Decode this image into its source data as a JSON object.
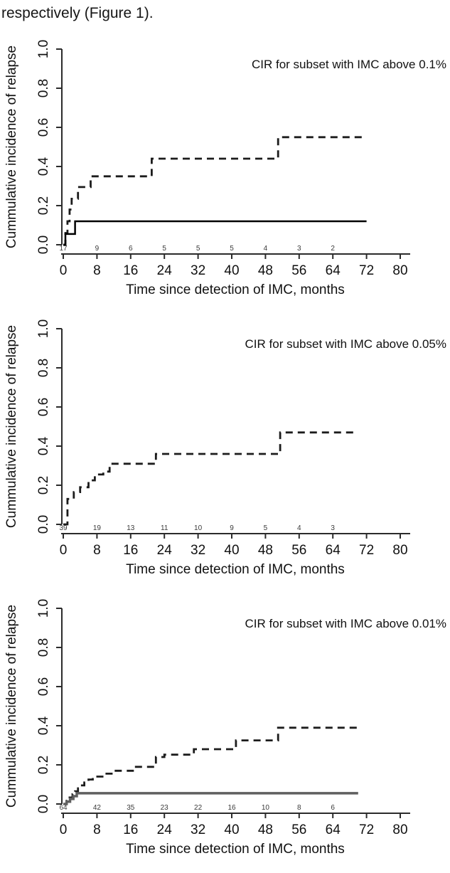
{
  "intro_text": "respectively (Figure 1).",
  "chart_data": [
    {
      "type": "step-line",
      "title": "CIR for subset with IMC above 0.1%",
      "xlabel": "Time since detection of IMC, months",
      "ylabel": "Cummulative incidence of relapse",
      "xlim": [
        0,
        80
      ],
      "ylim": [
        0,
        1
      ],
      "x_ticks": [
        0,
        8,
        16,
        24,
        32,
        40,
        48,
        56,
        64,
        72,
        80
      ],
      "y_ticks": [
        "0.0",
        "0.2",
        "0.4",
        "0.6",
        "0.8",
        "1.0"
      ],
      "grid": false,
      "legend": "none",
      "at_risk": {
        "positions": [
          0,
          8,
          16,
          24,
          32,
          40,
          48,
          56,
          64
        ],
        "counts": [
          17,
          9,
          6,
          5,
          5,
          5,
          4,
          3,
          2
        ]
      },
      "series": [
        {
          "name": "cir-dashed",
          "style": "dashed",
          "color": "#1c1c1c",
          "width": 2.8,
          "end_x": 72,
          "points": [
            [
              0,
              0
            ],
            [
              0.5,
              0.06
            ],
            [
              1,
              0.12
            ],
            [
              1.5,
              0.18
            ],
            [
              2,
              0.235
            ],
            [
              3.5,
              0.295
            ],
            [
              6.5,
              0.35
            ],
            [
              21,
              0.44
            ],
            [
              51,
              0.55
            ]
          ]
        },
        {
          "name": "cir-solid",
          "style": "solid",
          "color": "#000000",
          "width": 2.5,
          "end_x": 72,
          "points": [
            [
              0,
              0
            ],
            [
              0.5,
              0.055
            ],
            [
              2.8,
              0.12
            ]
          ]
        }
      ]
    },
    {
      "type": "step-line",
      "title": "CIR for subset with IMC above 0.05%",
      "xlabel": "Time since detection of IMC, months",
      "ylabel": "Cummulative incidence of relapse",
      "xlim": [
        0,
        80
      ],
      "ylim": [
        0,
        1
      ],
      "x_ticks": [
        0,
        8,
        16,
        24,
        32,
        40,
        48,
        56,
        64,
        72,
        80
      ],
      "y_ticks": [
        "0.0",
        "0.2",
        "0.4",
        "0.6",
        "0.8",
        "1.0"
      ],
      "grid": false,
      "legend": "none",
      "at_risk": {
        "positions": [
          0,
          8,
          16,
          24,
          32,
          40,
          48,
          56,
          64
        ],
        "counts": [
          39,
          19,
          13,
          11,
          10,
          9,
          5,
          4,
          3
        ]
      },
      "series": [
        {
          "name": "cir-dashed",
          "style": "dashed",
          "color": "#1c1c1c",
          "width": 2.8,
          "end_x": 70,
          "points": [
            [
              0,
              0
            ],
            [
              1,
              0.13
            ],
            [
              2.5,
              0.165
            ],
            [
              4,
              0.19
            ],
            [
              6,
              0.225
            ],
            [
              7.5,
              0.255
            ],
            [
              9.5,
              0.27
            ],
            [
              11,
              0.31
            ],
            [
              22,
              0.36
            ],
            [
              51.5,
              0.47
            ]
          ]
        }
      ]
    },
    {
      "type": "step-line",
      "title": "CIR for subset with IMC above 0.01%",
      "xlabel": "Time since detection of IMC, months",
      "ylabel": "Cummulative incidence of relapse",
      "xlim": [
        0,
        80
      ],
      "ylim": [
        0,
        1
      ],
      "x_ticks": [
        0,
        8,
        16,
        24,
        32,
        40,
        48,
        56,
        64,
        72,
        80
      ],
      "y_ticks": [
        "0.0",
        "0.2",
        "0.4",
        "0.6",
        "0.8",
        "1.0"
      ],
      "grid": false,
      "legend": "none",
      "at_risk": {
        "positions": [
          0,
          8,
          16,
          24,
          32,
          40,
          48,
          56,
          64
        ],
        "counts": [
          64,
          42,
          35,
          23,
          22,
          16,
          10,
          8,
          6
        ]
      },
      "series": [
        {
          "name": "cir-dashed",
          "style": "dashed",
          "color": "#1c1c1c",
          "width": 2.8,
          "end_x": 70,
          "points": [
            [
              0,
              0
            ],
            [
              0.8,
              0.016
            ],
            [
              1.5,
              0.033
            ],
            [
              2.2,
              0.05
            ],
            [
              2.8,
              0.065
            ],
            [
              3.5,
              0.08
            ],
            [
              4.2,
              0.095
            ],
            [
              5,
              0.11
            ],
            [
              6,
              0.125
            ],
            [
              7,
              0.14
            ],
            [
              10,
              0.155
            ],
            [
              12,
              0.17
            ],
            [
              17,
              0.19
            ],
            [
              22,
              0.24
            ],
            [
              24,
              0.252
            ],
            [
              31,
              0.28
            ],
            [
              41,
              0.325
            ],
            [
              51,
              0.39
            ]
          ]
        },
        {
          "name": "cir-solid",
          "style": "solid",
          "color": "#5f5f5f",
          "width": 3.5,
          "end_x": 70,
          "points": [
            [
              0,
              0
            ],
            [
              0.8,
              0.012
            ],
            [
              1.6,
              0.026
            ],
            [
              2.4,
              0.04
            ],
            [
              3.2,
              0.055
            ]
          ]
        }
      ]
    }
  ]
}
